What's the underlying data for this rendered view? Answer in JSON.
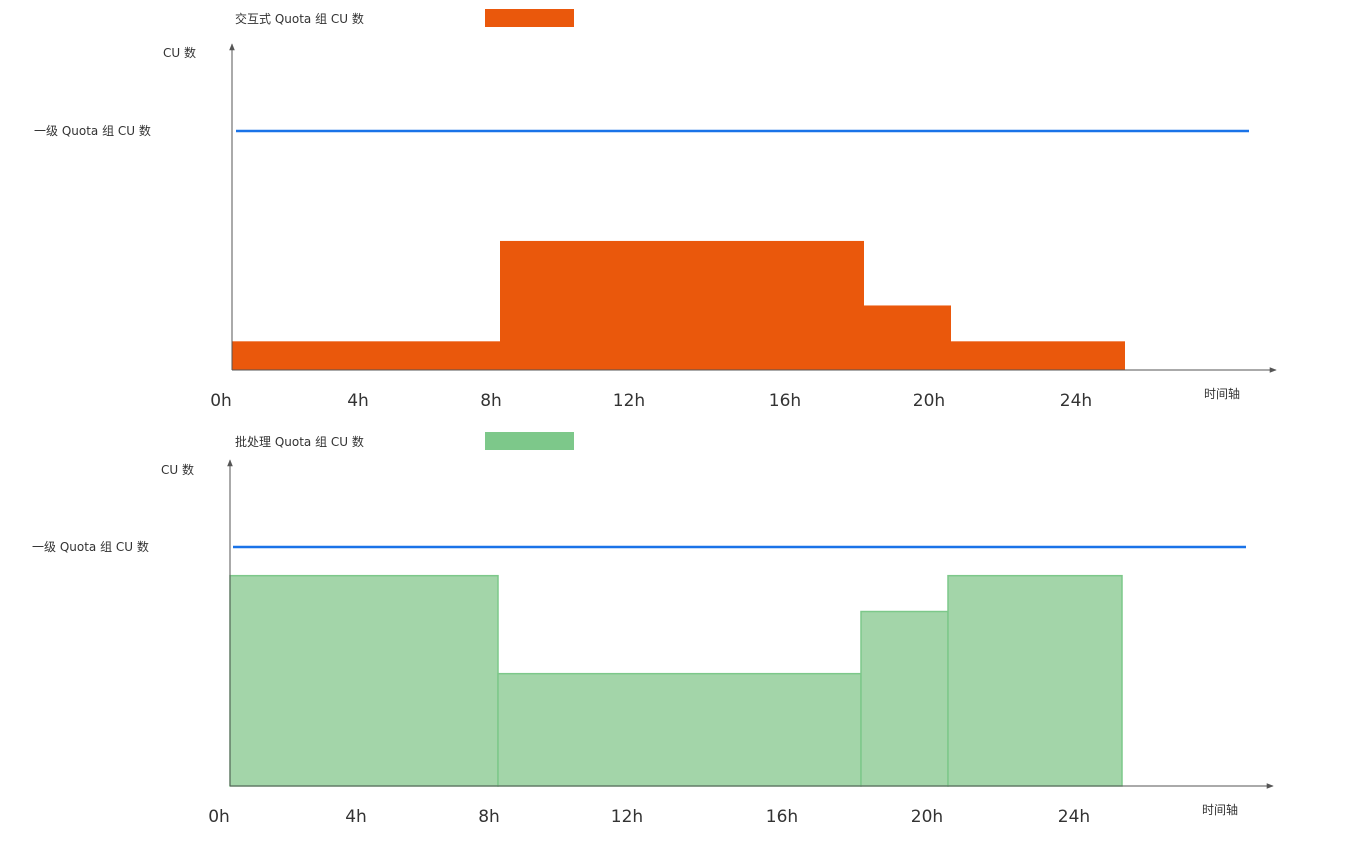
{
  "chart_data": [
    {
      "type": "area",
      "legend": "交互式 Quota 组 CU 数",
      "ylabel": "CU 数",
      "xlabel": "时间轴",
      "reference_line_label": "一级 Quota 组 CU 数",
      "x_tick_labels": [
        "0h",
        "4h",
        "8h",
        "12h",
        "16h",
        "20h",
        "24h"
      ],
      "steps": [
        {
          "from": "0h",
          "to": "8h",
          "level": 0.12
        },
        {
          "from": "8h",
          "to": "18.5h",
          "level": 0.54
        },
        {
          "from": "18.5h",
          "to": "21h",
          "level": 0.27
        },
        {
          "from": "21h",
          "to": "26h",
          "level": 0.12
        }
      ],
      "reference_level": 1.0,
      "color": "#ea580c",
      "line_color": "#1a73e8"
    },
    {
      "type": "area",
      "legend": "批处理 Quota 组 CU 数",
      "ylabel": "CU 数",
      "xlabel": "时间轴",
      "reference_line_label": "一级 Quota 组 CU 数",
      "x_tick_labels": [
        "0h",
        "4h",
        "8h",
        "12h",
        "16h",
        "20h",
        "24h"
      ],
      "steps": [
        {
          "from": "0h",
          "to": "8h",
          "level": 0.88
        },
        {
          "from": "8h",
          "to": "18.5h",
          "level": 0.47
        },
        {
          "from": "18.5h",
          "to": "21h",
          "level": 0.73
        },
        {
          "from": "21h",
          "to": "26h",
          "level": 0.88
        }
      ],
      "reference_level": 1.0,
      "color": "#a3d5a9",
      "line_color": "#1a73e8"
    }
  ]
}
